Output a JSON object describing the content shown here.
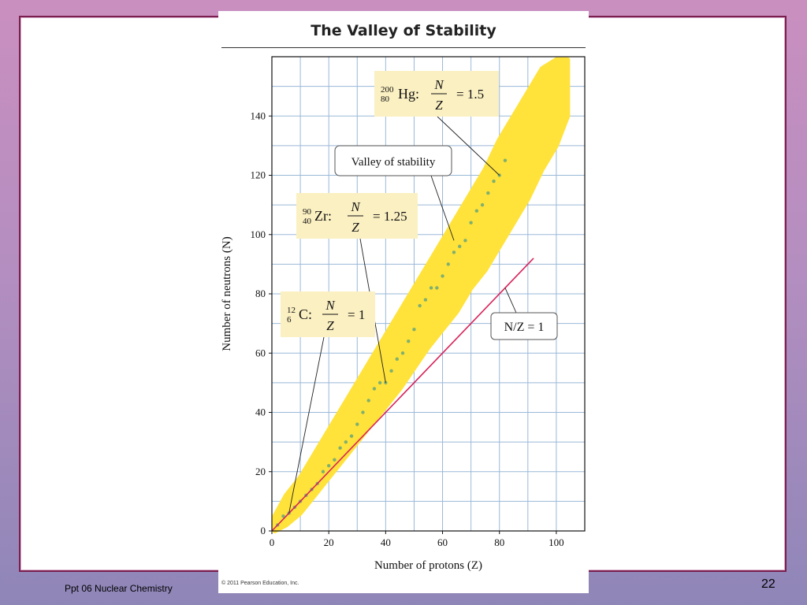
{
  "slide": {
    "footer_left": "Ppt 06 Nuclear Chemistry",
    "page_number": "22"
  },
  "figure": {
    "title": "The Valley of Stability",
    "copyright": "© 2011 Pearson Education, Inc."
  },
  "chart_data": {
    "type": "scatter",
    "title": "The Valley of Stability",
    "xlabel": "Number of protons (Z)",
    "ylabel": "Number of neutrons (N)",
    "xlim": [
      0,
      110
    ],
    "ylim": [
      0,
      160
    ],
    "x_ticks": [
      0,
      20,
      40,
      60,
      80,
      100
    ],
    "y_ticks": [
      0,
      20,
      40,
      60,
      80,
      100,
      120,
      140
    ],
    "grid": true,
    "band_color": "#ffe23a",
    "stable_color": "#7fb06f",
    "line_color": "#d8235a",
    "valley_band": [
      [
        1,
        0,
        5
      ],
      [
        5,
        2,
        12
      ],
      [
        10,
        6,
        18
      ],
      [
        15,
        12,
        26
      ],
      [
        20,
        18,
        34
      ],
      [
        25,
        24,
        42
      ],
      [
        30,
        30,
        50
      ],
      [
        35,
        36,
        58
      ],
      [
        40,
        42,
        66
      ],
      [
        45,
        48,
        74
      ],
      [
        50,
        55,
        82
      ],
      [
        55,
        62,
        90
      ],
      [
        60,
        68,
        98
      ],
      [
        65,
        74,
        106
      ],
      [
        70,
        82,
        114
      ],
      [
        75,
        88,
        122
      ],
      [
        80,
        96,
        132
      ],
      [
        85,
        104,
        140
      ],
      [
        90,
        112,
        148
      ],
      [
        95,
        122,
        156
      ],
      [
        100,
        130,
        159
      ],
      [
        104,
        140,
        159
      ]
    ],
    "stable_isotopes": [
      [
        2,
        2
      ],
      [
        4,
        5
      ],
      [
        6,
        6
      ],
      [
        8,
        8
      ],
      [
        10,
        10
      ],
      [
        12,
        12
      ],
      [
        14,
        14
      ],
      [
        16,
        16
      ],
      [
        18,
        20
      ],
      [
        20,
        22
      ],
      [
        22,
        24
      ],
      [
        24,
        28
      ],
      [
        26,
        30
      ],
      [
        28,
        32
      ],
      [
        30,
        36
      ],
      [
        32,
        40
      ],
      [
        34,
        44
      ],
      [
        36,
        48
      ],
      [
        38,
        50
      ],
      [
        40,
        50
      ],
      [
        42,
        54
      ],
      [
        44,
        58
      ],
      [
        46,
        60
      ],
      [
        48,
        64
      ],
      [
        50,
        68
      ],
      [
        52,
        76
      ],
      [
        54,
        78
      ],
      [
        56,
        82
      ],
      [
        58,
        82
      ],
      [
        60,
        86
      ],
      [
        62,
        90
      ],
      [
        64,
        94
      ],
      [
        66,
        96
      ],
      [
        68,
        98
      ],
      [
        70,
        104
      ],
      [
        72,
        108
      ],
      [
        74,
        110
      ],
      [
        76,
        114
      ],
      [
        78,
        118
      ],
      [
        80,
        120
      ],
      [
        82,
        125
      ]
    ],
    "reference_line": {
      "x": [
        0,
        92
      ],
      "y": [
        0,
        92
      ],
      "label": "N/Z = 1"
    },
    "annotations": [
      {
        "id": "hg",
        "sup": "200",
        "sub": "80",
        "symbol": "Hg",
        "numerator": "N",
        "denominator": "Z",
        "value": "= 1.5",
        "target": [
          80,
          120
        ]
      },
      {
        "id": "valley",
        "label": "Valley of stability",
        "target": [
          64,
          98
        ]
      },
      {
        "id": "zr",
        "sup": "90",
        "sub": "40",
        "symbol": "Zr",
        "numerator": "N",
        "denominator": "Z",
        "value": "= 1.25",
        "target": [
          40,
          50
        ]
      },
      {
        "id": "c",
        "sup": "12",
        "sub": "6",
        "symbol": "C",
        "numerator": "N",
        "denominator": "Z",
        "value": "= 1",
        "target": [
          6,
          6
        ]
      }
    ]
  }
}
